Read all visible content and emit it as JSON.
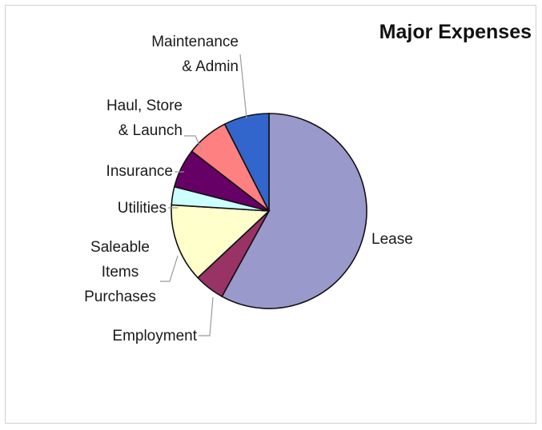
{
  "chart_data": {
    "type": "pie",
    "title": "Major Expenses",
    "start_angle_deg": 90,
    "direction": "clockwise",
    "slices": [
      {
        "label": "Lease",
        "value": 58,
        "color": "#9999cc"
      },
      {
        "label": "Employment",
        "value": 5,
        "color": "#993366"
      },
      {
        "label": "Saleable\nItems\nPurchases",
        "value": 13,
        "color": "#ffffcc"
      },
      {
        "label": "Utilities",
        "value": 3,
        "color": "#ccffff"
      },
      {
        "label": "Insurance",
        "value": 6.5,
        "color": "#660066"
      },
      {
        "label": "Haul, Store\n& Launch",
        "value": 7,
        "color": "#ff8080"
      },
      {
        "label": "Maintenance\n& Admin",
        "value": 7.5,
        "color": "#3366cc"
      }
    ]
  }
}
